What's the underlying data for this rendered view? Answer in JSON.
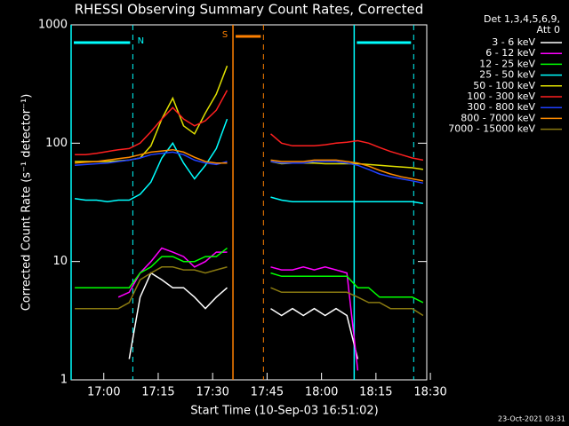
{
  "chart_data": {
    "type": "line",
    "title": "RHESSI Observing Summary Count Rates, Corrected",
    "subtitle": [
      "Det 1,3,4,5,6,9,",
      "Att 0"
    ],
    "x_label": "Start Time (10-Sep-03 16:51:02)",
    "y_label": "Corrected Count Rate (s⁻¹ detector⁻¹)",
    "footnote": "23-Oct-2021 03:31",
    "log_y": true,
    "ylim": [
      1,
      1000
    ],
    "yticks": [
      1,
      10,
      100,
      1000
    ],
    "xlim": [
      1011,
      1109
    ],
    "xticks": [
      {
        "value": 1020,
        "label": "17:00"
      },
      {
        "value": 1035,
        "label": "17:15"
      },
      {
        "value": 1050,
        "label": "17:30"
      },
      {
        "value": 1065,
        "label": "17:45"
      },
      {
        "value": 1080,
        "label": "18:00"
      },
      {
        "value": 1095,
        "label": "18:15"
      },
      {
        "value": 1110,
        "label": "18:30"
      }
    ],
    "x": [
      1012,
      1015,
      1018,
      1021,
      1024,
      1027,
      1030,
      1033,
      1036,
      1039,
      1042,
      1045,
      1048,
      1051,
      1054,
      1057,
      1060,
      1063,
      1066,
      1069,
      1072,
      1075,
      1078,
      1081,
      1084,
      1087,
      1090,
      1093,
      1096,
      1099,
      1102,
      1105,
      1108
    ],
    "series": [
      {
        "name": "3 - 6 keV",
        "color": "#ffffff",
        "values": [
          null,
          null,
          null,
          null,
          null,
          1.5,
          5,
          8,
          7,
          6,
          6,
          5,
          4,
          5,
          6,
          null,
          null,
          null,
          4,
          3.5,
          4,
          3.5,
          4,
          3.5,
          4,
          3.5,
          1.5,
          null,
          null,
          null,
          null,
          null,
          null
        ]
      },
      {
        "name": "6 - 12 keV",
        "color": "#ff00ff",
        "values": [
          null,
          null,
          null,
          null,
          5,
          5.5,
          8,
          10,
          13,
          12,
          11,
          9,
          10,
          12,
          12,
          null,
          null,
          null,
          9,
          8.5,
          8.5,
          9,
          8.5,
          9,
          8.5,
          8,
          1.2,
          null,
          null,
          null,
          null,
          null,
          null
        ]
      },
      {
        "name": "12 - 25 keV",
        "color": "#00ff00",
        "values": [
          6,
          6,
          6,
          6,
          6,
          6,
          8,
          9,
          11,
          11,
          10,
          10,
          11,
          11,
          13,
          null,
          null,
          null,
          8,
          7.5,
          7.5,
          7.5,
          7.5,
          7.5,
          7.5,
          7.5,
          6,
          6,
          5,
          5,
          5,
          5,
          4.5
        ]
      },
      {
        "name": "25 - 50 keV",
        "color": "#00ffff",
        "values": [
          34,
          33,
          33,
          32,
          33,
          33,
          37,
          47,
          75,
          100,
          68,
          50,
          65,
          90,
          160,
          null,
          null,
          null,
          35,
          33,
          32,
          32,
          32,
          32,
          32,
          32,
          32,
          32,
          32,
          32,
          32,
          32,
          31
        ]
      },
      {
        "name": "50 - 100 keV",
        "color": "#e0e000",
        "values": [
          70,
          70,
          70,
          70,
          71,
          72,
          75,
          95,
          160,
          240,
          140,
          120,
          180,
          260,
          450,
          null,
          null,
          null,
          70,
          67,
          68,
          68,
          68,
          67,
          67,
          67,
          67,
          66,
          65,
          64,
          63,
          62,
          60
        ]
      },
      {
        "name": "100 - 300 keV",
        "color": "#ff2020",
        "values": [
          80,
          80,
          82,
          85,
          88,
          90,
          100,
          125,
          160,
          200,
          160,
          140,
          155,
          190,
          280,
          null,
          null,
          null,
          120,
          100,
          95,
          95,
          95,
          97,
          100,
          102,
          105,
          100,
          92,
          85,
          80,
          75,
          72
        ]
      },
      {
        "name": "300 - 800 keV",
        "color": "#2040ff",
        "values": [
          65,
          66,
          67,
          68,
          70,
          72,
          75,
          80,
          82,
          84,
          80,
          72,
          68,
          66,
          70,
          null,
          null,
          null,
          70,
          68,
          68,
          68,
          70,
          70,
          70,
          68,
          65,
          60,
          55,
          52,
          50,
          48,
          46
        ]
      },
      {
        "name": "800 - 7000 keV",
        "color": "#ff8c00",
        "values": [
          68,
          69,
          70,
          72,
          74,
          76,
          80,
          84,
          86,
          88,
          84,
          76,
          70,
          68,
          68,
          null,
          null,
          null,
          72,
          70,
          70,
          70,
          72,
          72,
          72,
          70,
          68,
          64,
          59,
          55,
          52,
          50,
          48
        ]
      },
      {
        "name": "7000 - 15000 keV",
        "color": "#8a7a10",
        "values": [
          4,
          4,
          4,
          4,
          4,
          4.5,
          7,
          8,
          9,
          9,
          8.5,
          8.5,
          8,
          8.5,
          9,
          null,
          null,
          null,
          6,
          5.5,
          5.5,
          5.5,
          5.5,
          5.5,
          5.5,
          5.5,
          5,
          4.5,
          4.5,
          4,
          4,
          4,
          3.5
        ]
      }
    ],
    "periods": [
      {
        "text": "N",
        "type": "night",
        "start": 1011,
        "end": 1028,
        "color": "#00ffff"
      },
      {
        "type": "night",
        "start": 1089,
        "end": 1105.4,
        "color": "#00ffff"
      },
      {
        "text": "S",
        "type": "saa",
        "start": 1055.6,
        "end": 1064,
        "color": "#ff8000"
      }
    ]
  }
}
